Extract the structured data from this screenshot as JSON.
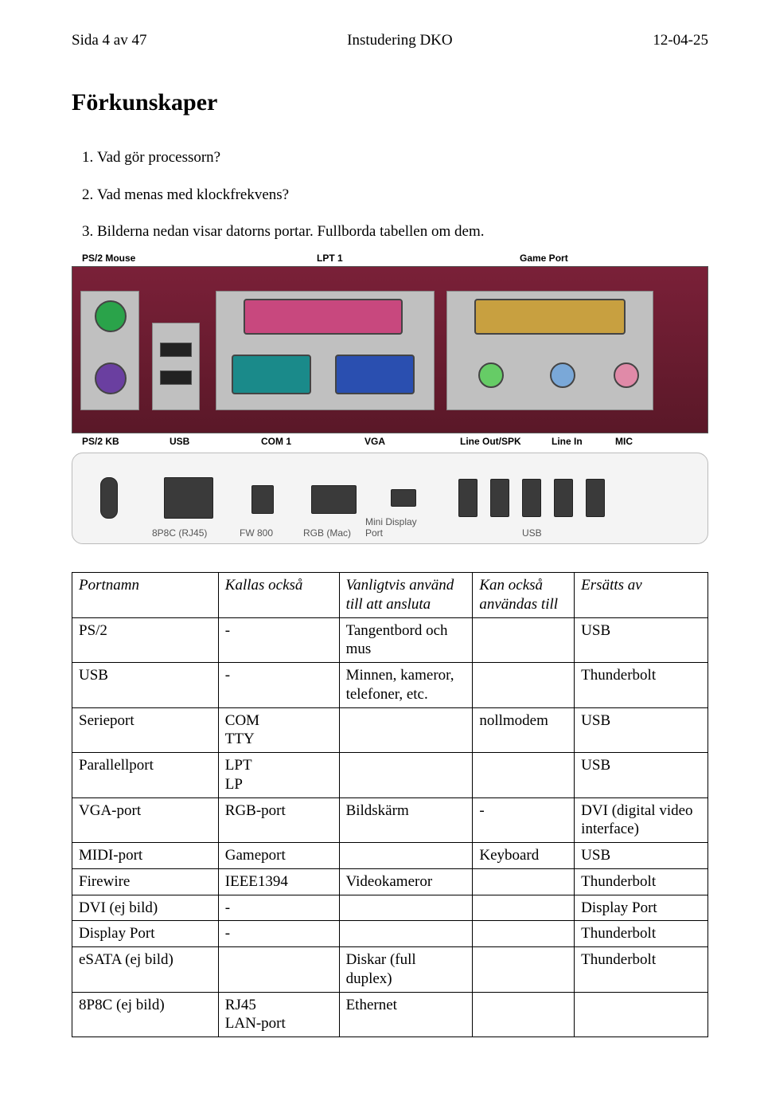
{
  "header": {
    "left": "Sida 4 av 47",
    "center": "Instudering DKO",
    "right": "12-04-25"
  },
  "title": "Förkunskaper",
  "questions": [
    "Vad gör processorn?",
    "Vad menas med klockfrekvens?",
    "Bilderna nedan visar datorns portar. Fullborda tabellen om dem."
  ],
  "image1": {
    "description": "Motherboard back panel ports photo",
    "labels": {
      "ps2_mouse": "PS/2 Mouse",
      "ps2_kb": "PS/2 KB",
      "usb": "USB",
      "lpt1": "LPT 1",
      "com1": "COM 1",
      "vga": "VGA",
      "game_port": "Game Port",
      "line_out": "Line Out/SPK",
      "line_in": "Line In",
      "mic": "MIC"
    },
    "colors": {
      "panel_bg": "#7a2038",
      "metal": "#c0c0c0",
      "ps2_green": "#2aa34a",
      "ps2_purple": "#6a3fa0",
      "lpt_pink": "#c8487e",
      "com_teal": "#1a8a8a",
      "vga_blue": "#2a4fb0",
      "game_gold": "#c8a040",
      "audio_green": "#66cc66",
      "audio_blue": "#7aa8d8",
      "audio_pink": "#e08aa8"
    }
  },
  "image2": {
    "description": "Mac mini rear ports photo",
    "labels": {
      "rj45": "8P8C (RJ45)",
      "fw800": "FW 800",
      "rgb_mac": "RGB (Mac)",
      "mini_dp_top": "Mini Display",
      "mini_dp_bottom": "Port",
      "usb": "USB"
    },
    "colors": {
      "body": "#f4f4f4",
      "port_dark": "#3a3a3a",
      "label_color": "#555"
    }
  },
  "table": {
    "headers": [
      "Portnamn",
      "Kallas också",
      "Vanligtvis använd till att ansluta",
      "Kan också användas till",
      "Ersätts av"
    ],
    "rows": [
      [
        "PS/2",
        "-",
        "Tangentbord och mus",
        "",
        "USB"
      ],
      [
        "USB",
        "-",
        "Minnen, kameror, telefoner, etc.",
        "",
        "Thunderbolt"
      ],
      [
        "Serieport",
        "COM\nTTY",
        "",
        "nollmodem",
        "USB"
      ],
      [
        "Parallellport",
        "LPT\nLP",
        "",
        "",
        "USB"
      ],
      [
        "VGA-port",
        "RGB-port",
        "Bildskärm",
        "-",
        "DVI (digital video interface)"
      ],
      [
        "MIDI-port",
        "Gameport",
        "",
        "Keyboard",
        "USB"
      ],
      [
        "Firewire",
        "IEEE1394",
        "Videokameror",
        "",
        "Thunderbolt"
      ],
      [
        "DVI (ej bild)",
        "-",
        "",
        "",
        "Display Port"
      ],
      [
        "Display Port",
        "-",
        "",
        "",
        "Thunderbolt"
      ],
      [
        "eSATA (ej bild)",
        "",
        "Diskar (full duplex)",
        "",
        "Thunderbolt"
      ],
      [
        "8P8C (ej bild)",
        "RJ45\nLAN-port",
        "Ethernet",
        "",
        ""
      ]
    ]
  }
}
